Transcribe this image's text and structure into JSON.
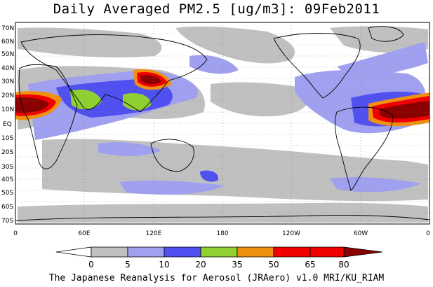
{
  "title": "Daily Averaged PM2.5 [ug/m3]: 09Feb2011",
  "footer": "The Japanese Reanalysis for Aerosol (JRAero) v1.0 MRI/KU_RIAM",
  "map": {
    "lat_labels": [
      "70N",
      "60N",
      "50N",
      "40N",
      "30N",
      "20N",
      "10N",
      "EQ",
      "10S",
      "20S",
      "30S",
      "40S",
      "50S",
      "60S",
      "70S"
    ],
    "lon_labels": [
      "0",
      "60E",
      "120E",
      "180",
      "120W",
      "60W",
      "0"
    ]
  },
  "colorbar": {
    "ticks": [
      "0",
      "5",
      "10",
      "20",
      "35",
      "50",
      "65",
      "80"
    ],
    "colors": [
      "#ffffff",
      "#c0c0c0",
      "#a0a0f0",
      "#5050f0",
      "#90d030",
      "#f09010",
      "#f00000",
      "#8b0000"
    ]
  },
  "palette": {
    "land_outline": "#000000",
    "grid": "#888888"
  }
}
